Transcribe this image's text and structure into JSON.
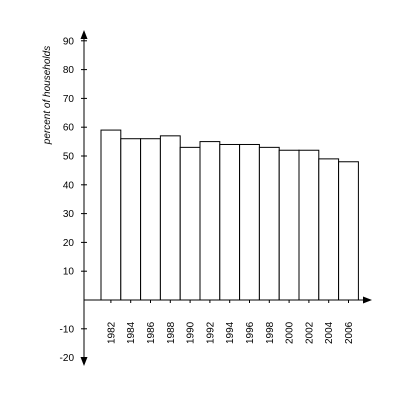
{
  "chart_data": {
    "type": "bar",
    "title": "",
    "xlabel": "",
    "ylabel": "percent of households",
    "ylim": [
      -20,
      90
    ],
    "ytick_values": [
      -20,
      -10,
      10,
      20,
      30,
      40,
      50,
      60,
      70,
      80,
      90
    ],
    "categories": [
      "1982",
      "1984",
      "1986",
      "1988",
      "1990",
      "1992",
      "1994",
      "1996",
      "1998",
      "2000",
      "2002",
      "2004",
      "2006"
    ],
    "values": [
      59,
      56,
      56,
      57,
      53,
      55,
      54,
      54,
      53,
      52,
      52,
      49,
      48
    ],
    "grid": false,
    "legend": "none",
    "colors": {
      "bar_fill": "#ffffff",
      "bar_stroke": "#000000",
      "axis": "#000000",
      "text": "#000000"
    }
  }
}
